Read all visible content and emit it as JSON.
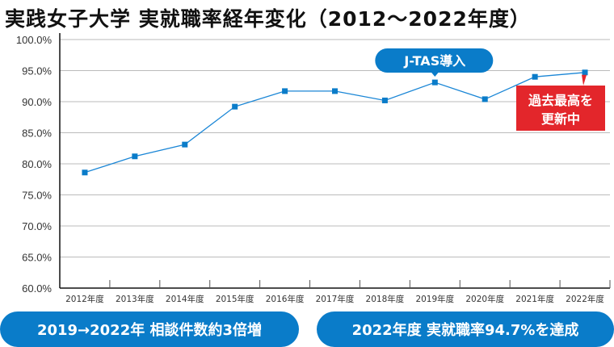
{
  "title": "実践女子大学 実就職率経年変化（2012〜2022年度）",
  "chart_data": {
    "type": "line",
    "title": "実践女子大学 実就職率経年変化（2012〜2022年度）",
    "categories": [
      "2012年度",
      "2013年度",
      "2014年度",
      "2015年度",
      "2016年度",
      "2017年度",
      "2018年度",
      "2019年度",
      "2020年度",
      "2021年度",
      "2022年度"
    ],
    "series": [
      {
        "values": [
          78.6,
          81.2,
          83.1,
          89.2,
          91.7,
          91.7,
          90.2,
          93.1,
          90.4,
          94.0,
          94.7
        ]
      }
    ],
    "yticks": [
      "100.0%",
      "95.0%",
      "90.0%",
      "85.0%",
      "80.0%",
      "75.0%",
      "70.0%",
      "65.0%",
      "60.0%"
    ],
    "ylim": [
      60,
      100
    ],
    "grid": true,
    "line_color": "#1a86d6",
    "annotations": [
      {
        "text": "J-TAS導入",
        "category": "2019年度",
        "color": "#0a7cc9"
      },
      {
        "text_line1": "過去最高を",
        "text_line2": "更新中",
        "category": "2022年度",
        "color": "#e3262b"
      }
    ]
  },
  "footer": {
    "left": "2019→2022年 相談件数約3倍増",
    "right": "2022年度 実就職率94.7%を達成"
  }
}
